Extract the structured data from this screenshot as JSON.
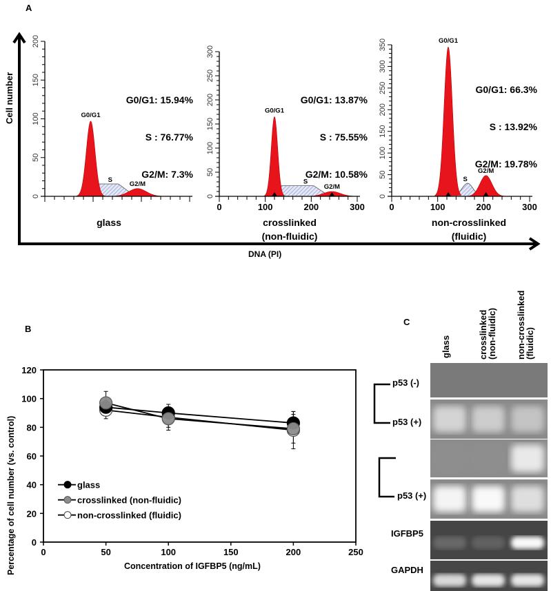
{
  "figure": {
    "panel_A": {
      "letter": "A",
      "y_axis_title": "Cell number",
      "x_axis_title": "DNA (PI)",
      "peak_labels": {
        "g0g1": "G0/G1",
        "s": "S",
        "g2m": "G2/M"
      }
    },
    "panel_B": {
      "letter": "B"
    },
    "panel_C": {
      "letter": "C",
      "lanes": [
        "glass",
        "crosslinked\n(non-fluidic)",
        "non-crosslinked\n(fluidic)"
      ],
      "lane_lines": [
        [
          "glass"
        ],
        [
          "crosslinked",
          "(non-fluidic)"
        ],
        [
          "non-crosslinked",
          "(fluidic)"
        ]
      ],
      "rows": [
        {
          "label": "p53 (-)",
          "band_intensity": [
            0.05,
            0.05,
            0.05
          ],
          "background": "#7a7a7a"
        },
        {
          "label": "p53 (+)",
          "band_intensity": [
            0.75,
            0.7,
            0.65
          ],
          "background": "#8a8a8a"
        },
        {
          "label": "",
          "band_intensity": [
            0.1,
            0.1,
            0.85
          ],
          "background": "#8c8c8c"
        },
        {
          "label": "p53 (+)",
          "band_intensity": [
            0.9,
            0.95,
            0.8
          ],
          "background": "#8a8a8a"
        },
        {
          "label": "IGFBP5",
          "band_intensity": [
            0.25,
            0.2,
            0.95
          ],
          "background": "#454545"
        },
        {
          "label": "GAPDH",
          "band_intensity": [
            0.8,
            0.85,
            0.85
          ],
          "background": "#474747"
        }
      ],
      "brackets": [
        {
          "labels": [
            "p53 (-)",
            "p53 (+)"
          ]
        },
        {
          "labels": [
            "",
            "p53 (+)"
          ]
        }
      ]
    }
  },
  "chart_data": [
    {
      "type": "area",
      "panel": "A",
      "subtitle": "glass",
      "xlabel": "DNA (PI)",
      "ylabel": "Cell number",
      "ylim": [
        0,
        200
      ],
      "yticks": [
        0,
        50,
        100,
        150,
        200
      ],
      "xticks_labeled": false,
      "phases": {
        "G0/G1": "15.94%",
        "S": "76.77%",
        "G2/M": "7.3%"
      },
      "stats_lines": [
        "G0/G1: 15.94%",
        "S : 76.77%",
        "G2/M: 7.3%"
      ],
      "peaks": {
        "G0/G1_height": 97,
        "S_plateau_height": 16,
        "G2/M_height": 10
      }
    },
    {
      "type": "area",
      "panel": "A",
      "subtitle_lines": [
        "crosslinked",
        "(non-fluidic)"
      ],
      "xlabel": "DNA (PI)",
      "ylabel": "Cell number",
      "xlim": [
        0,
        300
      ],
      "xticks": [
        0,
        100,
        200,
        300
      ],
      "ylim": [
        0,
        300
      ],
      "yticks": [
        0,
        50,
        100,
        150,
        200,
        250,
        300
      ],
      "phases": {
        "G0/G1": "13.87%",
        "S": "75.55%",
        "G2/M": "10.58%"
      },
      "stats_lines": [
        "G0/G1: 13.87%",
        "S : 75.55%",
        "G2/M: 10.58%"
      ],
      "peaks": {
        "G0/G1_center": 120,
        "G0/G1_height": 165,
        "S_plateau_height": 22,
        "G2/M_center": 245,
        "G2/M_height": 10
      }
    },
    {
      "type": "area",
      "panel": "A",
      "subtitle_lines": [
        "non-crosslinked",
        "(fluidic)"
      ],
      "xlabel": "DNA (PI)",
      "ylabel": "Cell number",
      "xlim": [
        0,
        300
      ],
      "xticks": [
        0,
        100,
        200,
        300
      ],
      "ylim": [
        0,
        350
      ],
      "yticks": [
        0,
        50,
        100,
        150,
        200,
        250,
        300,
        350
      ],
      "phases": {
        "G0/G1": "66.3%",
        "S": "13.92%",
        "G2/M": "19.78%"
      },
      "stats_lines": [
        "G0/G1: 66.3%",
        "S : 13.92%",
        "G2/M: 19.78%"
      ],
      "peaks": {
        "G0/G1_center": 123,
        "G0/G1_height": 345,
        "S_center": 165,
        "S_height": 30,
        "G2/M_center": 205,
        "G2/M_height": 48
      }
    },
    {
      "type": "line",
      "panel": "B",
      "title": "",
      "xlabel": "Concentration of IGFBP5 (ng/mL)",
      "ylabel": "Percentage of cell number (vs. control)",
      "xlim": [
        0,
        250
      ],
      "ylim": [
        0,
        120
      ],
      "xticks": [
        0,
        50,
        100,
        150,
        200,
        250
      ],
      "yticks": [
        0,
        20,
        40,
        60,
        80,
        100,
        120
      ],
      "grid": false,
      "legend_position": "lower-left",
      "x": [
        50,
        100,
        200
      ],
      "series": [
        {
          "name": "glass",
          "marker": "filled-black",
          "values": [
            94,
            90,
            83
          ],
          "errors": [
            5,
            6,
            8
          ]
        },
        {
          "name": "crosslinked  (non-fluidic)",
          "marker": "filled-gray",
          "values": [
            97,
            86,
            79
          ],
          "errors": [
            8,
            8,
            10
          ]
        },
        {
          "name": "non-crosslinked (fluidic)",
          "marker": "open",
          "values": [
            92,
            87,
            78
          ],
          "errors": [
            6,
            7,
            13
          ]
        }
      ]
    }
  ],
  "colors": {
    "phase_fill": "#e8141c",
    "phase_dark": "#c8101a",
    "s_hatch": "#9aa6d8",
    "s_fill": "#dfe4f6",
    "gray_marker": "#8c8c8c"
  }
}
